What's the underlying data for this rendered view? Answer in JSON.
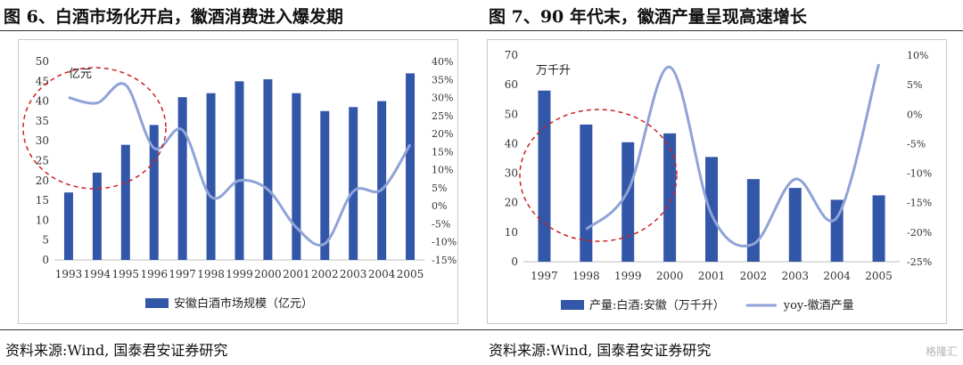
{
  "fig6": {
    "title": "图 6、白酒市场化开启，徽酒消费进入爆发期",
    "source": "资料来源:Wind, 国泰君安证券研究"
  },
  "fig7": {
    "title": "图 7、90 年代末，徽酒产量呈现高速增长",
    "source": "资料来源:Wind, 国泰君安证券研究"
  },
  "watermark": "格隆汇",
  "chart_data": [
    {
      "type": "bar",
      "unit_label": "亿元",
      "categories": [
        "1993",
        "1994",
        "1995",
        "1996",
        "1997",
        "1998",
        "1999",
        "2000",
        "2001",
        "2002",
        "2003",
        "2004",
        "2005"
      ],
      "series": [
        {
          "name": "安徽白酒市场规模（亿元）",
          "axis": "left",
          "kind": "bar",
          "values": [
            17,
            22,
            29,
            34,
            41,
            42,
            45,
            45.5,
            42,
            37.5,
            38.5,
            40,
            47
          ]
        },
        {
          "name": "",
          "axis": "right",
          "kind": "line",
          "values": [
            30,
            28.5,
            33.5,
            16,
            21,
            2.5,
            7,
            4.5,
            -6,
            -10.5,
            4,
            4.5,
            17
          ]
        }
      ],
      "ylim": [
        0,
        50
      ],
      "yticks": [
        0,
        5,
        10,
        15,
        20,
        25,
        30,
        35,
        40,
        45,
        50
      ],
      "y2lim": [
        -15,
        40
      ],
      "y2ticks": [
        "40%",
        "35%",
        "30%",
        "25%",
        "20%",
        "15%",
        "10%",
        "5%",
        "0%",
        "-5%",
        "-10%",
        "-15%"
      ],
      "annotation": "dashed red ellipse around 1993–1996",
      "colors": {
        "bar": "#3357a8",
        "line": "#8fa3d6",
        "ellipse": "#cc2222"
      },
      "legend": "bottom"
    },
    {
      "type": "bar",
      "unit_label": "万千升",
      "categories": [
        "1997",
        "1998",
        "1999",
        "2000",
        "2001",
        "2002",
        "2003",
        "2004",
        "2005"
      ],
      "series": [
        {
          "name": "产量:白酒:安徽（万千升）",
          "axis": "left",
          "kind": "bar",
          "values": [
            58,
            46.5,
            40.5,
            43.5,
            35.5,
            28,
            25,
            21,
            22.5
          ]
        },
        {
          "name": "yoy-徽酒产量",
          "axis": "right",
          "kind": "line",
          "values": [
            null,
            -19.5,
            -13,
            8,
            -17,
            -22,
            -11,
            -17.5,
            8.5
          ]
        }
      ],
      "ylim": [
        0,
        70
      ],
      "yticks": [
        0,
        10,
        20,
        30,
        40,
        50,
        60,
        70
      ],
      "y2lim": [
        -25,
        10
      ],
      "y2ticks": [
        "10%",
        "5%",
        "0%",
        "-5%",
        "-10%",
        "-15%",
        "-20%",
        "-25%"
      ],
      "annotation": "dashed red ellipse around 1998–1999",
      "colors": {
        "bar": "#3357a8",
        "line": "#8fa3d6",
        "ellipse": "#cc2222"
      },
      "legend": "bottom"
    }
  ]
}
